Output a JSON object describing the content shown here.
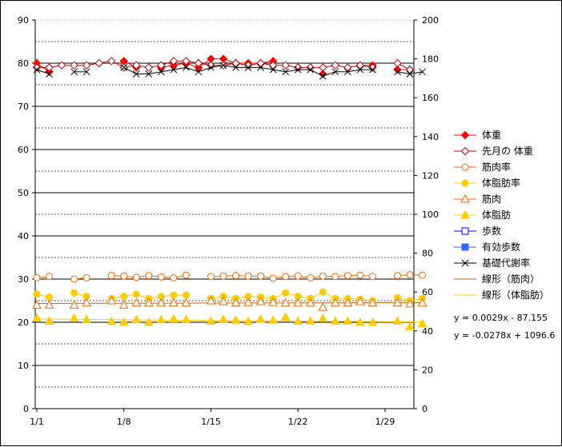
{
  "chart_data": {
    "type": "line",
    "title": "",
    "xlabel": "",
    "ylabel": "",
    "ylim_left": [
      0,
      90
    ],
    "ylim_right": [
      0,
      200
    ],
    "x_ticks": [
      "1/1",
      "1/8",
      "1/15",
      "1/22",
      "1/29"
    ],
    "x_tick_days": [
      1,
      8,
      15,
      22,
      29
    ],
    "x_range_days": [
      1,
      31
    ],
    "y_ticks_left": [
      "0",
      "10",
      "20",
      "30",
      "40",
      "50",
      "60",
      "70",
      "80",
      "90"
    ],
    "y_ticks_right": [
      "0",
      "20",
      "40",
      "60",
      "80",
      "100",
      "120",
      "140",
      "160",
      "180",
      "200"
    ],
    "legend_position": "right",
    "series": [
      {
        "name": "体重",
        "axis": "left",
        "color": "#ff0000",
        "marker": "diamond-filled",
        "x": [
          1,
          2,
          8,
          9,
          11,
          12,
          13,
          14,
          15,
          16,
          17,
          18,
          19,
          20,
          22,
          24,
          27,
          28,
          30,
          31
        ],
        "y": [
          80.0,
          78.0,
          80.5,
          79.0,
          79.0,
          79.5,
          80.0,
          79.0,
          81.0,
          81.0,
          80.0,
          80.0,
          80.0,
          80.5,
          79.0,
          77.5,
          79.5,
          79.5,
          78.5,
          78.5
        ]
      },
      {
        "name": "先月の 体重",
        "axis": "left",
        "color": "#cc0000",
        "marker": "diamond-open",
        "x": [
          1,
          2,
          3,
          4,
          5,
          6,
          7,
          8,
          9,
          10,
          11,
          12,
          13,
          14,
          15,
          16,
          17,
          18,
          19,
          20,
          21,
          22,
          23,
          24,
          25,
          26,
          27,
          28,
          30,
          31
        ],
        "y": [
          79.0,
          79.0,
          79.5,
          79.5,
          79.5,
          80.0,
          80.5,
          79.0,
          79.5,
          79.0,
          79.5,
          80.5,
          80.5,
          80.0,
          79.5,
          79.5,
          80.0,
          79.5,
          80.0,
          79.5,
          79.5,
          79.0,
          79.0,
          79.0,
          79.5,
          79.0,
          79.5,
          79.0,
          80.0,
          78.5
        ]
      },
      {
        "name": "筋肉率",
        "axis": "left",
        "color": "#ff6600",
        "marker": "circle-open",
        "x": [
          1,
          2,
          4,
          5,
          7,
          8,
          9,
          10,
          11,
          12,
          13,
          15,
          16,
          17,
          18,
          19,
          20,
          21,
          22,
          23,
          24,
          25,
          26,
          27,
          28,
          30,
          31,
          32
        ],
        "y": [
          30.3,
          30.6,
          30.0,
          30.3,
          30.8,
          30.7,
          30.4,
          30.8,
          30.5,
          30.3,
          30.9,
          30.6,
          30.7,
          30.8,
          30.7,
          30.7,
          30.2,
          30.6,
          30.7,
          30.3,
          30.7,
          30.6,
          30.8,
          30.9,
          30.6,
          30.8,
          31.0,
          30.9
        ]
      },
      {
        "name": "体脂肪率",
        "axis": "left",
        "color": "#ffcc00",
        "marker": "circle-filled",
        "x": [
          1,
          2,
          4,
          5,
          7,
          8,
          9,
          10,
          11,
          12,
          13,
          15,
          16,
          17,
          18,
          19,
          20,
          21,
          22,
          23,
          24,
          25,
          26,
          27,
          28,
          30,
          31,
          32
        ],
        "y": [
          26.5,
          25.8,
          26.8,
          26.0,
          25.5,
          26.0,
          26.5,
          25.5,
          26.0,
          26.3,
          26.3,
          25.5,
          26.0,
          25.5,
          26.0,
          25.8,
          25.5,
          26.8,
          26.0,
          25.5,
          27.0,
          25.5,
          25.5,
          25.3,
          25.0,
          25.7,
          25.0,
          25.5
        ]
      },
      {
        "name": "筋肉",
        "axis": "left",
        "color": "#ff6600",
        "marker": "triangle-open",
        "x": [
          1,
          2,
          4,
          5,
          7,
          8,
          9,
          10,
          11,
          12,
          13,
          15,
          16,
          17,
          18,
          19,
          20,
          21,
          22,
          23,
          24,
          25,
          26,
          27,
          28,
          30,
          31,
          32
        ],
        "y": [
          24.0,
          24.0,
          24.0,
          24.5,
          25.0,
          24.0,
          24.5,
          24.5,
          24.5,
          24.5,
          24.5,
          25.0,
          24.8,
          24.5,
          24.6,
          24.8,
          24.6,
          24.5,
          24.5,
          24.5,
          23.5,
          24.5,
          24.5,
          24.8,
          24.5,
          24.5,
          24.3,
          24.5
        ]
      },
      {
        "name": "体脂肪",
        "axis": "left",
        "color": "#ffcc00",
        "marker": "triangle-filled",
        "x": [
          1,
          2,
          4,
          5,
          7,
          8,
          9,
          10,
          11,
          12,
          13,
          15,
          16,
          17,
          18,
          19,
          20,
          21,
          22,
          23,
          24,
          25,
          26,
          27,
          28,
          30,
          31,
          32
        ],
        "y": [
          21.0,
          20.3,
          21.0,
          20.6,
          20.2,
          20.0,
          20.6,
          20.0,
          20.6,
          20.8,
          20.6,
          20.3,
          20.7,
          20.5,
          20.2,
          20.7,
          20.5,
          21.2,
          20.3,
          20.3,
          20.9,
          20.3,
          20.3,
          20.0,
          20.0,
          20.3,
          19.0,
          19.7
        ]
      },
      {
        "name": "歩数",
        "axis": "right",
        "color": "#0000ff",
        "marker": "square-open",
        "x": [],
        "y": []
      },
      {
        "name": "有効歩数",
        "axis": "right",
        "color": "#3366ff",
        "marker": "square-filled",
        "x": [],
        "y": []
      },
      {
        "name": "基礎代謝率",
        "axis": "left",
        "color": "#000000",
        "marker": "x",
        "x": [
          1,
          2,
          4,
          5,
          8,
          9,
          10,
          11,
          12,
          13,
          14,
          15,
          16,
          17,
          18,
          19,
          20,
          21,
          22,
          23,
          24,
          25,
          26,
          27,
          28,
          30,
          31,
          32
        ],
        "y": [
          78.5,
          77.5,
          78.0,
          78.0,
          79.0,
          77.5,
          77.5,
          78.0,
          78.5,
          79.0,
          78.0,
          79.0,
          79.5,
          79.0,
          79.0,
          79.0,
          78.5,
          78.0,
          78.5,
          78.5,
          77.0,
          78.0,
          78.0,
          78.5,
          78.5,
          78.0,
          77.5,
          78.0
        ]
      },
      {
        "name": "線形（筋肉）",
        "axis": "left",
        "color": "#c86414",
        "marker": "line",
        "trend": {
          "slope": 0.0029,
          "intercept": -87.155
        }
      },
      {
        "name": "線形（体脂肪）",
        "axis": "left",
        "color": "#ffcc00",
        "marker": "line",
        "trend": {
          "slope": -0.0278,
          "intercept": 1096.6
        }
      }
    ],
    "equations": [
      "y = 0.0029x - 87.155",
      "y = -0.0278x + 1096.6"
    ]
  }
}
